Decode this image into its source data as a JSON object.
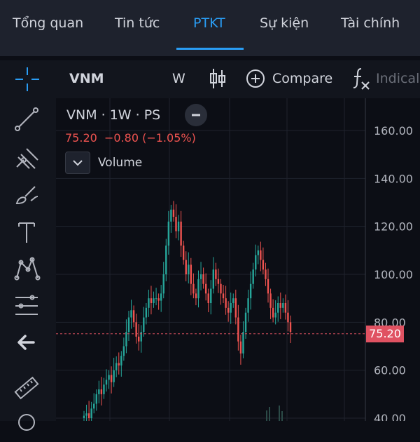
{
  "tabs": [
    {
      "label": "Tổng quan",
      "active": false
    },
    {
      "label": "Tin tức",
      "active": false
    },
    {
      "label": "PTKT",
      "active": true
    },
    {
      "label": "Sự kiện",
      "active": false
    },
    {
      "label": "Tài chính",
      "active": false
    }
  ],
  "toolbar": {
    "symbol": "VNM",
    "interval": "W",
    "compare_label": "Compare",
    "indicators_label": "Indical"
  },
  "legend": {
    "title": "VNM · 1W · PS",
    "price_change": "75.20  −0.80 (−1.05%)",
    "volume_label": "Volume"
  },
  "colors": {
    "accent": "#2a9df4",
    "up": "#26a69a",
    "down": "#ef5350",
    "last_price": "#e05262"
  },
  "icons": [
    "crosshair-icon",
    "trend-line-icon",
    "pitchfork-icon",
    "brush-icon",
    "text-icon",
    "pattern-icon",
    "fib-icon",
    "back-arrow-icon",
    "ruler-icon",
    "candles-icon",
    "plus-circle-icon",
    "fx-icon",
    "chevron-down-icon",
    "minus-icon"
  ],
  "chart_data": {
    "type": "candlestick",
    "y_ticks": [
      "160.00",
      "140.00",
      "120.00",
      "100.00",
      "80.00",
      "60.00",
      "40.00"
    ],
    "ylim": [
      35,
      168
    ],
    "last_price": 75.2,
    "last_price_label": "75.20",
    "close_series": [
      41,
      42,
      40,
      44,
      46,
      50,
      52,
      50,
      54,
      56,
      58,
      55,
      60,
      63,
      62,
      66,
      70,
      76,
      82,
      85,
      80,
      74,
      72,
      76,
      82,
      86,
      90,
      88,
      90,
      90,
      89,
      92,
      100,
      112,
      122,
      127,
      124,
      118,
      122,
      112,
      106,
      100,
      104,
      96,
      92,
      90,
      98,
      100,
      96,
      92,
      88,
      94,
      102,
      98,
      96,
      92,
      90,
      86,
      84,
      88,
      90,
      82,
      72,
      67,
      76,
      84,
      90,
      96,
      102,
      108,
      110,
      106,
      102,
      98,
      92,
      86,
      82,
      84,
      88,
      86,
      88,
      84,
      80,
      76
    ]
  }
}
